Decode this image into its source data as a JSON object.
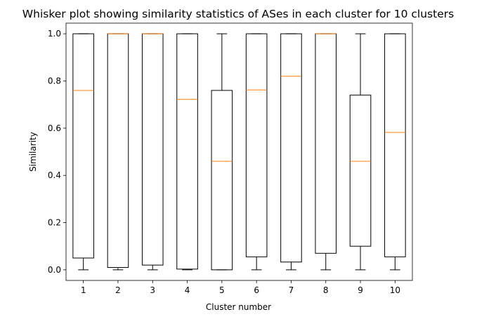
{
  "chart_data": {
    "type": "box",
    "title": "Whisker plot showing similarity statistics of ASes in each cluster for 10 clusters",
    "xlabel": "Cluster number",
    "ylabel": "Similarity",
    "categories": [
      "1",
      "2",
      "3",
      "4",
      "5",
      "6",
      "7",
      "8",
      "9",
      "10"
    ],
    "yticks": [
      "0.0",
      "0.2",
      "0.4",
      "0.6",
      "0.8",
      "1.0"
    ],
    "ylim": [
      -0.045,
      1.045
    ],
    "xlim": [
      0.5,
      10.5
    ],
    "grid": false,
    "colors": {
      "box": "#000000",
      "median": "#ff7f0e"
    },
    "boxes": [
      {
        "whislo": 0.0,
        "q1": 0.05,
        "median": 0.76,
        "q3": 1.0,
        "whishi": 1.0
      },
      {
        "whislo": 0.0,
        "q1": 0.01,
        "median": 1.0,
        "q3": 1.0,
        "whishi": 1.0
      },
      {
        "whislo": 0.0,
        "q1": 0.02,
        "median": 1.0,
        "q3": 1.0,
        "whishi": 1.0
      },
      {
        "whislo": 0.0,
        "q1": 0.003,
        "median": 0.722,
        "q3": 1.0,
        "whishi": 1.0
      },
      {
        "whislo": 0.0,
        "q1": 0.0,
        "median": 0.46,
        "q3": 0.76,
        "whishi": 1.0
      },
      {
        "whislo": 0.0,
        "q1": 0.055,
        "median": 0.762,
        "q3": 1.0,
        "whishi": 1.0
      },
      {
        "whislo": 0.0,
        "q1": 0.033,
        "median": 0.82,
        "q3": 1.0,
        "whishi": 1.0
      },
      {
        "whislo": 0.0,
        "q1": 0.07,
        "median": 1.0,
        "q3": 1.0,
        "whishi": 1.0
      },
      {
        "whislo": 0.0,
        "q1": 0.1,
        "median": 0.46,
        "q3": 0.74,
        "whishi": 1.0
      },
      {
        "whislo": 0.0,
        "q1": 0.055,
        "median": 0.582,
        "q3": 1.0,
        "whishi": 1.0
      }
    ]
  }
}
